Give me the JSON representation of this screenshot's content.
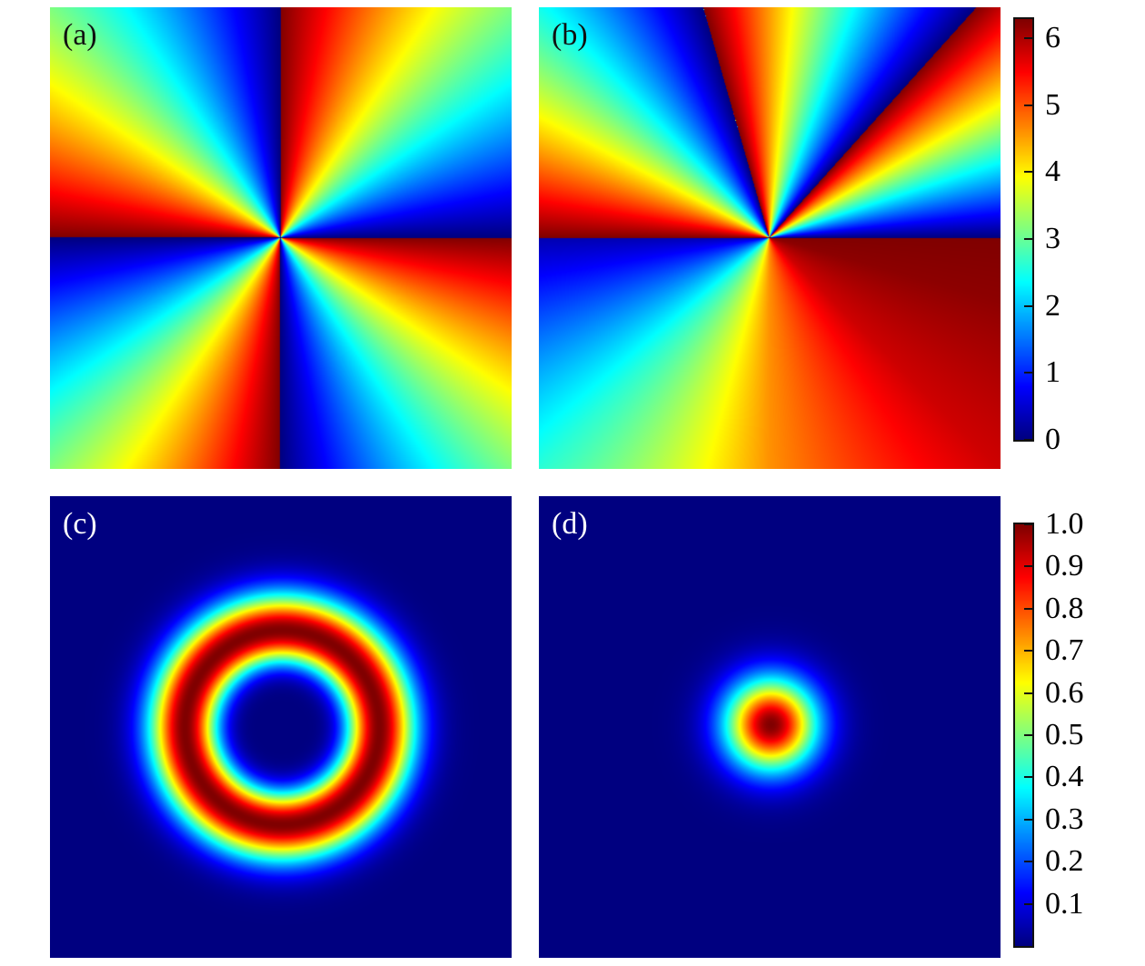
{
  "chart_data": [
    {
      "type": "heatmap",
      "panel_label": "(a)",
      "quantity": "phase",
      "colormap": "jet",
      "range": [
        0,
        6.2832
      ],
      "topological_charge": 4
    },
    {
      "type": "heatmap",
      "panel_label": "(b)",
      "quantity": "phase",
      "colormap": "jet",
      "range": [
        0,
        6.2832
      ],
      "phase_vs_azimuth_deg": [
        [
          0,
          0
        ],
        [
          48,
          6.28
        ],
        [
          48.01,
          0
        ],
        [
          106,
          6.28
        ],
        [
          106.01,
          0
        ],
        [
          180,
          6.28
        ],
        [
          180.01,
          0.3
        ],
        [
          225,
          2.6
        ],
        [
          270,
          4.6
        ],
        [
          315,
          5.8
        ],
        [
          345,
          6.2
        ],
        [
          360,
          6.28
        ]
      ]
    },
    {
      "type": "heatmap",
      "panel_label": "(c)",
      "quantity": "intensity",
      "colormap": "jet",
      "range": [
        0,
        1
      ],
      "shape": "ring"
    },
    {
      "type": "heatmap",
      "panel_label": "(d)",
      "quantity": "intensity",
      "colormap": "jet",
      "range": [
        0,
        1
      ],
      "shape": "gaussian spot"
    }
  ],
  "colorbars": [
    {
      "range": [
        0,
        6.2832
      ],
      "ticks": [
        0,
        1,
        2,
        3,
        4,
        5,
        6
      ],
      "tick_labels": [
        "0",
        "1",
        "2",
        "3",
        "4",
        "5",
        "6"
      ]
    },
    {
      "range": [
        0,
        1
      ],
      "ticks": [
        0.1,
        0.2,
        0.3,
        0.4,
        0.5,
        0.6,
        0.7,
        0.8,
        0.9,
        1.0
      ],
      "tick_labels": [
        "0.1",
        "0.2",
        "0.3",
        "0.4",
        "0.5",
        "0.6",
        "0.7",
        "0.8",
        "0.9",
        "1.0"
      ]
    }
  ],
  "colors": {
    "label_light": "#ffffff",
    "label_dark": "#111111"
  }
}
